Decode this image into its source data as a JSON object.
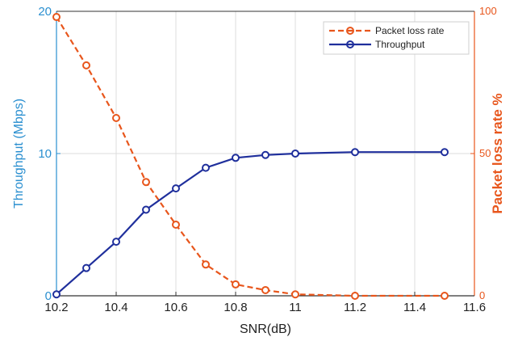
{
  "chart_data": {
    "type": "line",
    "title": "",
    "xlabel": "SNR(dB)",
    "ylabel_left": "Throughput (Mbps)",
    "ylabel_right": "Packet loss rate %",
    "xlim": [
      10.2,
      11.6
    ],
    "ylim_left": [
      0,
      20
    ],
    "ylim_right": [
      0,
      100
    ],
    "x_ticks": [
      "10.2",
      "10.4",
      "10.6",
      "10.8",
      "11",
      "11.2",
      "11.4",
      "11.6"
    ],
    "y_ticks_left": [
      "0",
      "10",
      "20"
    ],
    "y_ticks_right": [
      "0",
      "50",
      "100"
    ],
    "grid": true,
    "legend_position": "top-right",
    "colors": {
      "throughput": "#1f2f9c",
      "packet_loss": "#e8561c",
      "left_axis": "#2a8fd0",
      "right_axis": "#e8561c"
    },
    "series": [
      {
        "name": "Packet loss rate",
        "axis": "right",
        "style": "dashed-circle",
        "x": [
          10.2,
          10.3,
          10.4,
          10.5,
          10.6,
          10.7,
          10.8,
          10.9,
          11,
          11.2,
          11.5
        ],
        "values": [
          98,
          81,
          62.5,
          40,
          25,
          11,
          4,
          2,
          0.5,
          0,
          0
        ]
      },
      {
        "name": "Throughput",
        "axis": "left",
        "style": "solid-circle",
        "x": [
          10.2,
          10.3,
          10.4,
          10.5,
          10.6,
          10.7,
          10.8,
          10.9,
          11,
          11.2,
          11.5
        ],
        "values": [
          0.1,
          1.95,
          3.8,
          6.05,
          7.55,
          9.0,
          9.7,
          9.9,
          10.0,
          10.1,
          10.1
        ]
      }
    ]
  }
}
